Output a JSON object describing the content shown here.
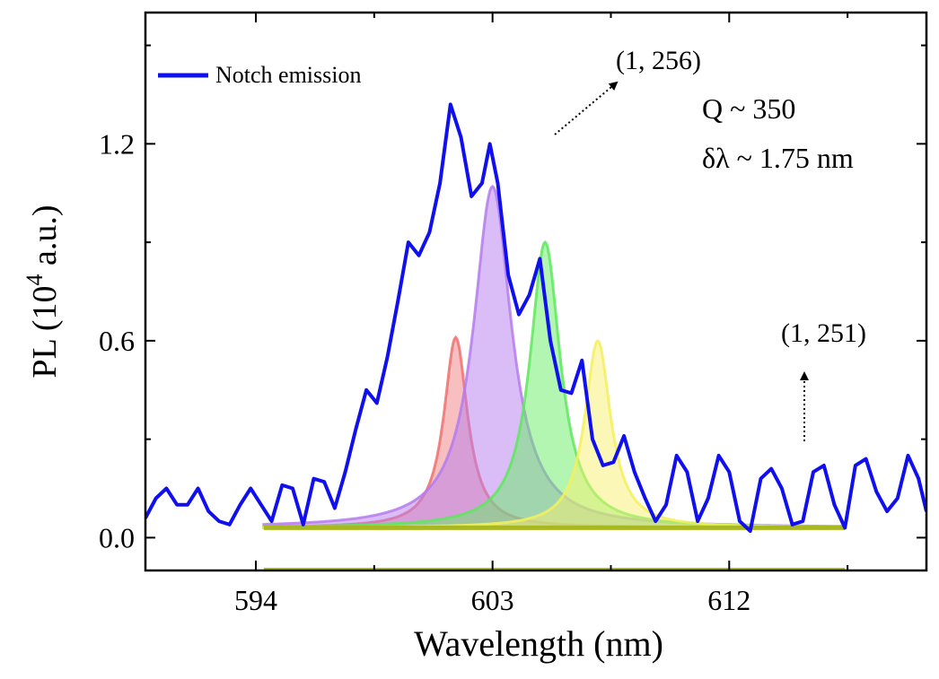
{
  "chart_data": {
    "type": "line",
    "title": "",
    "xlabel": "Wavelength (nm)",
    "ylabel": {
      "prefix": "PL  (10",
      "sup": "4",
      "suffix": " a.u.)"
    },
    "xlim": [
      589.8,
      619.5
    ],
    "ylim": [
      -0.1,
      1.6
    ],
    "xticks": [
      594,
      603,
      612
    ],
    "xminor": [
      598.5,
      607.5,
      616.5
    ],
    "yticks": [
      0.0,
      0.6,
      1.2
    ],
    "ytick_labels": [
      "0.0",
      "0.6",
      "1.2"
    ],
    "yminor": [
      0.3,
      0.9,
      1.5
    ],
    "grid": false,
    "legend": {
      "position": "top-left",
      "entries": [
        {
          "label": "Notch emission",
          "color": "#1010ee"
        }
      ]
    },
    "series": [
      {
        "name": "Notch emission",
        "color": "#1010ee",
        "x": [
          589.8,
          590.2,
          590.6,
          591.0,
          591.4,
          591.8,
          592.2,
          592.6,
          593.0,
          593.4,
          593.8,
          594.2,
          594.6,
          595.0,
          595.4,
          595.8,
          596.2,
          596.6,
          597.0,
          597.4,
          597.8,
          598.2,
          598.6,
          599.0,
          599.4,
          599.8,
          600.2,
          600.6,
          601.0,
          601.4,
          601.8,
          602.2,
          602.6,
          602.9,
          603.2,
          603.6,
          604.0,
          604.4,
          604.8,
          605.2,
          605.6,
          606.0,
          606.4,
          606.8,
          607.2,
          607.6,
          608.0,
          608.4,
          608.8,
          609.2,
          609.6,
          610.0,
          610.4,
          610.8,
          611.2,
          611.6,
          612.0,
          612.4,
          612.8,
          613.2,
          613.6,
          614.0,
          614.4,
          614.8,
          615.2,
          615.6,
          616.0,
          616.4,
          616.8,
          617.2,
          617.6,
          618.0,
          618.4,
          618.8,
          619.2,
          619.5
        ],
        "values": [
          0.06,
          0.12,
          0.15,
          0.1,
          0.1,
          0.15,
          0.08,
          0.05,
          0.04,
          0.1,
          0.15,
          0.1,
          0.05,
          0.16,
          0.15,
          0.04,
          0.18,
          0.17,
          0.09,
          0.2,
          0.33,
          0.45,
          0.41,
          0.55,
          0.72,
          0.9,
          0.86,
          0.93,
          1.08,
          1.32,
          1.22,
          1.04,
          1.08,
          1.2,
          1.08,
          0.8,
          0.68,
          0.74,
          0.85,
          0.6,
          0.45,
          0.44,
          0.54,
          0.3,
          0.22,
          0.23,
          0.31,
          0.2,
          0.12,
          0.05,
          0.1,
          0.25,
          0.2,
          0.05,
          0.12,
          0.25,
          0.2,
          0.05,
          0.02,
          0.18,
          0.21,
          0.15,
          0.04,
          0.05,
          0.2,
          0.22,
          0.1,
          0.03,
          0.22,
          0.24,
          0.14,
          0.08,
          0.12,
          0.25,
          0.18,
          0.08
        ]
      }
    ],
    "fit_peaks": [
      {
        "name": "peak-red",
        "center": 601.6,
        "height": 0.58,
        "fwhm": 1.1,
        "stroke": "#f07070",
        "fill": "#f08080"
      },
      {
        "name": "peak-purple",
        "center": 603.0,
        "height": 1.04,
        "fwhm": 1.75,
        "stroke": "#b57bf0",
        "fill": "#b57bf0"
      },
      {
        "name": "peak-green",
        "center": 605.0,
        "height": 0.87,
        "fwhm": 1.4,
        "stroke": "#5ee85e",
        "fill": "#66ee66"
      },
      {
        "name": "peak-yellow",
        "center": 607.0,
        "height": 0.57,
        "fwhm": 1.2,
        "stroke": "#f5f05a",
        "fill": "#f8f070"
      }
    ],
    "fit_range": [
      594.3,
      616.4
    ],
    "fit_baseline": 0.03,
    "annotations": {
      "mode_1": "(1, 256)",
      "mode_2": "(1, 251)",
      "q_factor": "Q ~ 350",
      "linewidth": "δλ ~ 1.75 nm"
    }
  }
}
